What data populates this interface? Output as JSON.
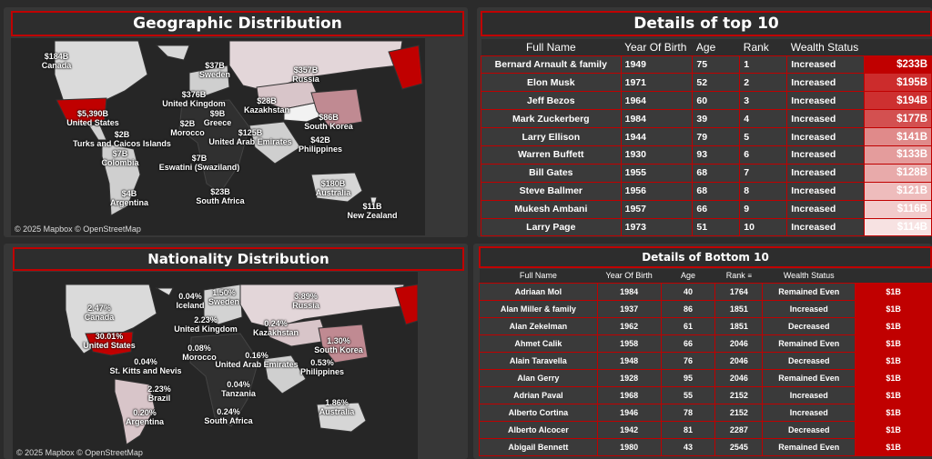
{
  "geo": {
    "title": "Geographic Distribution",
    "credit": "© 2025 Mapbox © OpenStreetMap",
    "labels": [
      "$184B",
      "Canada",
      "$5,390B",
      "United States",
      "$2B",
      "Turks and Caicos Islands",
      "$7B",
      "Colombia",
      "$4B",
      "Argentina",
      "$37B",
      "Sweden",
      "$376B",
      "United Kingdom",
      "$2B",
      "Morocco",
      "$9B",
      "Greece",
      "$125B",
      "United Arab Emirates",
      "$7B",
      "Eswatini (Swaziland)",
      "$23B",
      "South Africa",
      "$357B",
      "Russia",
      "$28B",
      "Kazakhstan",
      "$86B",
      "South Korea",
      "$42B",
      "Philippines",
      "$180B",
      "Australia",
      "$11B",
      "New Zealand"
    ]
  },
  "nat": {
    "title": "Nationality Distribution",
    "credit": "© 2025 Mapbox © OpenStreetMap",
    "labels": [
      "2.47%",
      "Canada",
      "30.01%",
      "United States",
      "0.04%",
      "St. Kitts and Nevis",
      "2.23%",
      "Brazil",
      "0.20%",
      "Argentina",
      "0.04%",
      "Iceland",
      "1.50%",
      "Sweden",
      "2.23%",
      "United Kingdom",
      "0.08%",
      "Morocco",
      "0.16%",
      "United Arab Emirates",
      "0.04%",
      "Tanzania",
      "0.24%",
      "South Africa",
      "3.89%",
      "Russia",
      "0.24%",
      "Kazakhstan",
      "1.30%",
      "South Korea",
      "0.53%",
      "Philippines",
      "1.86%",
      "Australia"
    ]
  },
  "top": {
    "title": "Details of top 10",
    "headers": [
      "Full Name",
      "Year Of Birth",
      "Age",
      "Rank",
      "Wealth Status",
      ""
    ],
    "rows": [
      [
        "Bernard Arnault & family",
        "1949",
        "75",
        "1",
        "Increased",
        "$233B"
      ],
      [
        "Elon Musk",
        "1971",
        "52",
        "2",
        "Increased",
        "$195B"
      ],
      [
        "Jeff Bezos",
        "1964",
        "60",
        "3",
        "Increased",
        "$194B"
      ],
      [
        "Mark Zuckerberg",
        "1984",
        "39",
        "4",
        "Increased",
        "$177B"
      ],
      [
        "Larry Ellison",
        "1944",
        "79",
        "5",
        "Increased",
        "$141B"
      ],
      [
        "Warren Buffett",
        "1930",
        "93",
        "6",
        "Increased",
        "$133B"
      ],
      [
        "Bill Gates",
        "1955",
        "68",
        "7",
        "Increased",
        "$128B"
      ],
      [
        "Steve Ballmer",
        "1956",
        "68",
        "8",
        "Increased",
        "$121B"
      ],
      [
        "Mukesh Ambani",
        "1957",
        "66",
        "9",
        "Increased",
        "$116B"
      ],
      [
        "Larry Page",
        "1973",
        "51",
        "10",
        "Increased",
        "$114B"
      ]
    ],
    "colors": [
      "#c00000",
      "#cc2c2c",
      "#cd3030",
      "#d35050",
      "#e08a8a",
      "#e49c9c",
      "#e8aaaa",
      "#eebcbc",
      "#f2cbcb",
      "#f7e2e2"
    ]
  },
  "bottom": {
    "title": "Details of Bottom 10",
    "headers": [
      "Full Name",
      "Year Of Birth",
      "Age",
      "Rank",
      "Wealth Status",
      ""
    ],
    "rows": [
      [
        "Adriaan Mol",
        "1984",
        "40",
        "1764",
        "Remained Even",
        "$1B"
      ],
      [
        "Alan Miller & family",
        "1937",
        "86",
        "1851",
        "Increased",
        "$1B"
      ],
      [
        "Alan Zekelman",
        "1962",
        "61",
        "1851",
        "Decreased",
        "$1B"
      ],
      [
        "Ahmet Calik",
        "1958",
        "66",
        "2046",
        "Remained Even",
        "$1B"
      ],
      [
        "Alain Taravella",
        "1948",
        "76",
        "2046",
        "Decreased",
        "$1B"
      ],
      [
        "Alan Gerry",
        "1928",
        "95",
        "2046",
        "Remained Even",
        "$1B"
      ],
      [
        "Adrian Paval",
        "1968",
        "55",
        "2152",
        "Increased",
        "$1B"
      ],
      [
        "Alberto Cortina",
        "1946",
        "78",
        "2152",
        "Increased",
        "$1B"
      ],
      [
        "Alberto Alcocer",
        "1942",
        "81",
        "2287",
        "Decreased",
        "$1B"
      ],
      [
        "Abigail Bennett",
        "1980",
        "43",
        "2545",
        "Remained Even",
        "$1B"
      ]
    ]
  }
}
